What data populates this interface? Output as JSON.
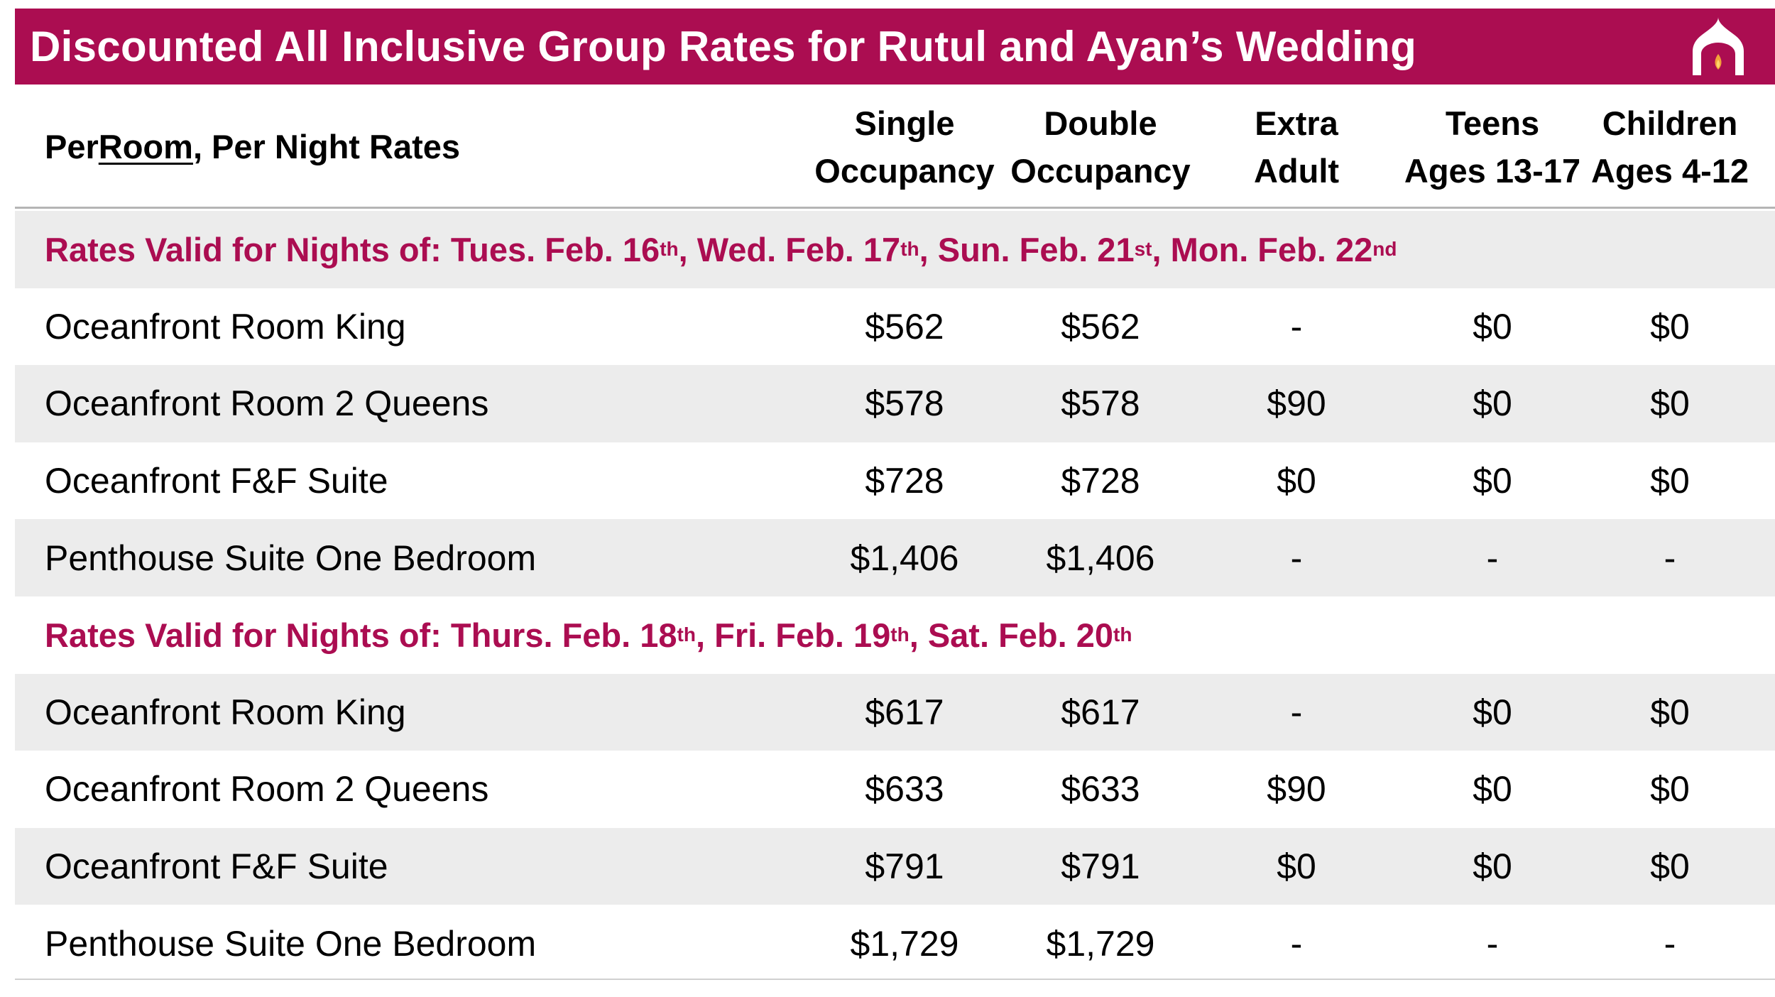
{
  "title": "Discounted All Inclusive Group Rates for Rutul and Ayan’s Wedding",
  "logo_icon": "palace-dome-flame-icon",
  "colors": {
    "brand": "#ab0d51",
    "shade": "#ececec"
  },
  "header": {
    "row_label_pre": "Per ",
    "row_label_underlined": "Room",
    "row_label_post": ", Per Night Rates",
    "columns": [
      {
        "line1": "Single",
        "line2": "Occupancy"
      },
      {
        "line1": "Double",
        "line2": "Occupancy"
      },
      {
        "line1": "Extra",
        "line2": "Adult"
      },
      {
        "line1": "Teens",
        "line2": "Ages 13-17"
      },
      {
        "line1": "Children",
        "line2": "Ages 4-12"
      }
    ]
  },
  "sections": [
    {
      "heading": {
        "prefix": "Rates Valid for Nights of: ",
        "dates": [
          {
            "text": "Tues. Feb. 16",
            "sup": "th",
            "sep": ", "
          },
          {
            "text": "Wed. Feb. 17",
            "sup": "th",
            "sep": ", "
          },
          {
            "text": "Sun. Feb. 21",
            "sup": "st",
            "sep": ", "
          },
          {
            "text": "Mon. Feb. 22",
            "sup": "nd",
            "sep": ""
          }
        ]
      },
      "rows": [
        {
          "name": "Oceanfront Room King",
          "values": [
            "$562",
            "$562",
            "-",
            "$0",
            "$0"
          ]
        },
        {
          "name": "Oceanfront Room 2 Queens",
          "values": [
            "$578",
            "$578",
            "$90",
            "$0",
            "$0"
          ]
        },
        {
          "name": "Oceanfront F&F Suite",
          "values": [
            "$728",
            "$728",
            "$0",
            "$0",
            "$0"
          ]
        },
        {
          "name": "Penthouse Suite One Bedroom",
          "values": [
            "$1,406",
            "$1,406",
            "-",
            "-",
            "-"
          ]
        }
      ]
    },
    {
      "heading": {
        "prefix": "Rates Valid for Nights of: ",
        "dates": [
          {
            "text": "Thurs. Feb. 18",
            "sup": "th",
            "sep": ", "
          },
          {
            "text": "Fri. Feb. 19",
            "sup": "th",
            "sep": ", "
          },
          {
            "text": "Sat. Feb. 20",
            "sup": "th",
            "sep": ""
          }
        ]
      },
      "rows": [
        {
          "name": "Oceanfront Room King",
          "values": [
            "$617",
            "$617",
            "-",
            "$0",
            "$0"
          ]
        },
        {
          "name": "Oceanfront Room 2 Queens",
          "values": [
            "$633",
            "$633",
            "$90",
            "$0",
            "$0"
          ]
        },
        {
          "name": "Oceanfront F&F Suite",
          "values": [
            "$791",
            "$791",
            "$0",
            "$0",
            "$0"
          ]
        },
        {
          "name": "Penthouse Suite One Bedroom",
          "values": [
            "$1,729",
            "$1,729",
            "-",
            "-",
            "-"
          ]
        }
      ]
    }
  ]
}
